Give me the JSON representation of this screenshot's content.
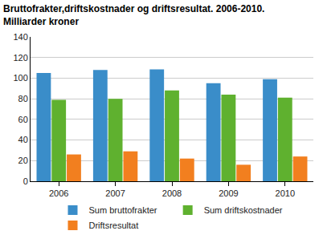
{
  "chart_data": {
    "type": "bar",
    "title": "Bruttofrakter,driftskostnader og driftsresultat. 2006-2010.",
    "subtitle": "Milliarder kroner",
    "categories": [
      "2006",
      "2007",
      "2008",
      "2009",
      "2010"
    ],
    "series": [
      {
        "name": "Sum bruttofrakter",
        "color": "#3a8dc9",
        "values": [
          105,
          108,
          108.5,
          95,
          99
        ]
      },
      {
        "name": "Sum driftskostnader",
        "color": "#5fb12f",
        "values": [
          79,
          80,
          88,
          84,
          81
        ]
      },
      {
        "name": "Driftsresultat",
        "color": "#f27f1f",
        "values": [
          26,
          29,
          22,
          16,
          24
        ]
      }
    ],
    "ylim": [
      0,
      140
    ],
    "yticks": [
      0,
      20,
      40,
      60,
      80,
      100,
      120,
      140
    ],
    "grid": true,
    "legend": "bottom"
  }
}
